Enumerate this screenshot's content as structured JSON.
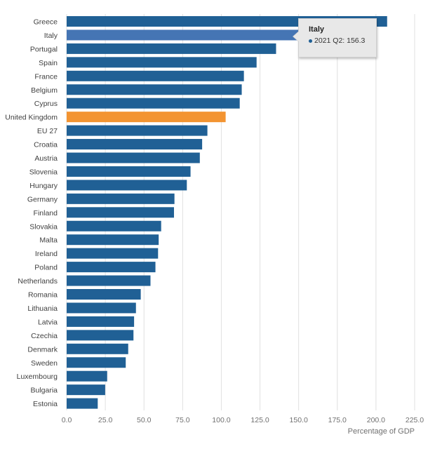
{
  "chart_data": {
    "type": "bar",
    "orientation": "horizontal",
    "categories": [
      "Greece",
      "Italy",
      "Portugal",
      "Spain",
      "France",
      "Belgium",
      "Cyprus",
      "United Kingdom",
      "EU 27",
      "Croatia",
      "Austria",
      "Slovenia",
      "Hungary",
      "Germany",
      "Finland",
      "Slovakia",
      "Malta",
      "Ireland",
      "Poland",
      "Netherlands",
      "Romania",
      "Lithuania",
      "Latvia",
      "Czechia",
      "Denmark",
      "Sweden",
      "Luxembourg",
      "Bulgaria",
      "Estonia"
    ],
    "values": [
      207.2,
      156.3,
      135.4,
      122.8,
      114.6,
      113.2,
      111.9,
      102.8,
      91.0,
      87.6,
      86.1,
      80.1,
      77.7,
      69.7,
      69.4,
      61.1,
      59.5,
      59.1,
      57.4,
      54.2,
      47.9,
      44.8,
      43.6,
      43.2,
      39.8,
      38.2,
      26.2,
      24.9,
      20.1
    ],
    "highlight_color_index": 7,
    "xlabel": "Percentage of GDP",
    "xlim": [
      0,
      225
    ],
    "xticks": [
      "0.0",
      "25.0",
      "50.0",
      "75.0",
      "100.0",
      "125.0",
      "150.0",
      "175.0",
      "200.0",
      "225.0"
    ],
    "grid": "vertical",
    "colors": {
      "default": "#206095",
      "highlight": "#f39431",
      "hover": "#4575b4",
      "grid": "#e0e0e0"
    }
  },
  "tooltip": {
    "title": "Italy",
    "text": "2021 Q2: 156.3",
    "target_index": 1
  }
}
